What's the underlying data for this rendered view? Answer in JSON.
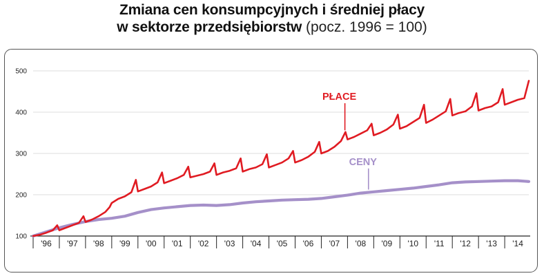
{
  "title": {
    "line1": "Zmiana cen konsumpcyjnych i średniej płacy",
    "line2_bold": "w sektorze przedsiębiorstw",
    "line2_light": " (pocz. 1996 = 100)"
  },
  "colors": {
    "place": "#e01b22",
    "ceny": "#a590c9",
    "grid": "#d0d0d0",
    "axis": "#222222"
  },
  "chart_data": {
    "type": "line",
    "title": "Zmiana cen konsumpcyjnych i średniej płacy w sektorze przedsiębiorstw (pocz. 1996 = 100)",
    "xlabel": "",
    "ylabel": "",
    "ylim": [
      100,
      500
    ],
    "yticks": [
      "100",
      "200",
      "300",
      "400",
      "500"
    ],
    "xlim": [
      1996,
      2014.92
    ],
    "xticks": [
      "'96",
      "'97",
      "'98",
      "'99",
      "'00",
      "'01",
      "'02",
      "'03",
      "'04",
      "'05",
      "'06",
      "'07",
      "'08",
      "'09",
      "'10",
      "'11",
      "'12",
      "'13",
      "'14"
    ],
    "grid": true,
    "series": [
      {
        "name": "PŁACE",
        "annotation_at": 2007.9,
        "x": [
          1996,
          1996.25,
          1996.5,
          1996.75,
          1996.92,
          1997,
          1997.25,
          1997.5,
          1997.75,
          1997.92,
          1998,
          1998.25,
          1998.5,
          1998.75,
          1998.92,
          1999,
          1999.25,
          1999.5,
          1999.75,
          1999.92,
          2000,
          2000.25,
          2000.5,
          2000.75,
          2000.92,
          2001,
          2001.25,
          2001.5,
          2001.75,
          2001.92,
          2002,
          2002.25,
          2002.5,
          2002.75,
          2002.92,
          2003,
          2003.25,
          2003.5,
          2003.75,
          2003.92,
          2004,
          2004.25,
          2004.5,
          2004.75,
          2004.92,
          2005,
          2005.25,
          2005.5,
          2005.75,
          2005.92,
          2006,
          2006.25,
          2006.5,
          2006.75,
          2006.92,
          2007,
          2007.25,
          2007.5,
          2007.75,
          2007.92,
          2008,
          2008.25,
          2008.5,
          2008.75,
          2008.92,
          2009,
          2009.25,
          2009.5,
          2009.75,
          2009.92,
          2010,
          2010.25,
          2010.5,
          2010.75,
          2010.92,
          2011,
          2011.25,
          2011.5,
          2011.75,
          2011.92,
          2012,
          2012.25,
          2012.5,
          2012.75,
          2012.92,
          2013,
          2013.25,
          2013.5,
          2013.75,
          2013.92,
          2014,
          2014.25,
          2014.5,
          2014.75,
          2014.92
        ],
        "values": [
          100,
          103,
          108,
          114,
          126,
          114,
          120,
          126,
          132,
          148,
          134,
          140,
          148,
          158,
          170,
          180,
          190,
          196,
          206,
          236,
          208,
          214,
          220,
          230,
          254,
          228,
          234,
          240,
          248,
          268,
          242,
          246,
          250,
          256,
          276,
          248,
          254,
          258,
          264,
          288,
          256,
          262,
          266,
          274,
          298,
          266,
          272,
          278,
          288,
          306,
          278,
          284,
          292,
          304,
          328,
          300,
          306,
          316,
          330,
          352,
          334,
          340,
          348,
          356,
          372,
          344,
          350,
          358,
          370,
          394,
          360,
          366,
          376,
          386,
          418,
          374,
          382,
          392,
          402,
          432,
          392,
          398,
          402,
          414,
          446,
          404,
          410,
          414,
          424,
          456,
          418,
          424,
          430,
          434,
          476
        ]
      },
      {
        "name": "CENY",
        "annotation_at": 2008.8,
        "x": [
          1996,
          1996.5,
          1997,
          1997.5,
          1998,
          1998.5,
          1999,
          1999.5,
          2000,
          2000.5,
          2001,
          2001.5,
          2002,
          2002.5,
          2003,
          2003.5,
          2004,
          2004.5,
          2005,
          2005.5,
          2006,
          2006.5,
          2007,
          2007.5,
          2008,
          2008.5,
          2009,
          2009.5,
          2010,
          2010.5,
          2011,
          2011.5,
          2012,
          2012.5,
          2013,
          2013.5,
          2014,
          2014.5,
          2014.92
        ],
        "values": [
          100,
          110,
          120,
          128,
          135,
          140,
          143,
          148,
          157,
          164,
          168,
          171,
          174,
          175,
          174,
          176,
          180,
          183,
          185,
          187,
          188,
          189,
          191,
          195,
          199,
          204,
          207,
          210,
          213,
          216,
          220,
          224,
          229,
          231,
          232,
          233,
          234,
          234,
          232
        ]
      }
    ]
  }
}
